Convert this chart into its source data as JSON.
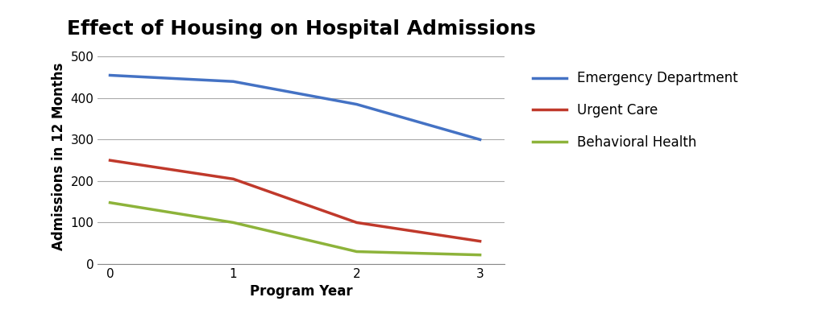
{
  "title": "Effect of Housing on Hospital Admissions",
  "xlabel": "Program Year",
  "ylabel": "Admissions in 12 Months",
  "x": [
    0,
    1,
    2,
    3
  ],
  "series": [
    {
      "label": "Emergency Department",
      "color": "#4472C4",
      "values": [
        455,
        440,
        385,
        300
      ]
    },
    {
      "label": "Urgent Care",
      "color": "#C0392B",
      "values": [
        250,
        205,
        100,
        55
      ]
    },
    {
      "label": "Behavioral Health",
      "color": "#8DB33A",
      "values": [
        148,
        100,
        30,
        22
      ]
    }
  ],
  "ylim": [
    0,
    520
  ],
  "yticks": [
    0,
    100,
    200,
    300,
    400,
    500
  ],
  "xticks": [
    0,
    1,
    2,
    3
  ],
  "background_color": "#ffffff",
  "title_fontsize": 18,
  "label_fontsize": 12,
  "tick_fontsize": 11,
  "legend_fontsize": 12,
  "line_width": 2.5,
  "grid_color": "#aaaaaa",
  "grid_linewidth": 0.8
}
